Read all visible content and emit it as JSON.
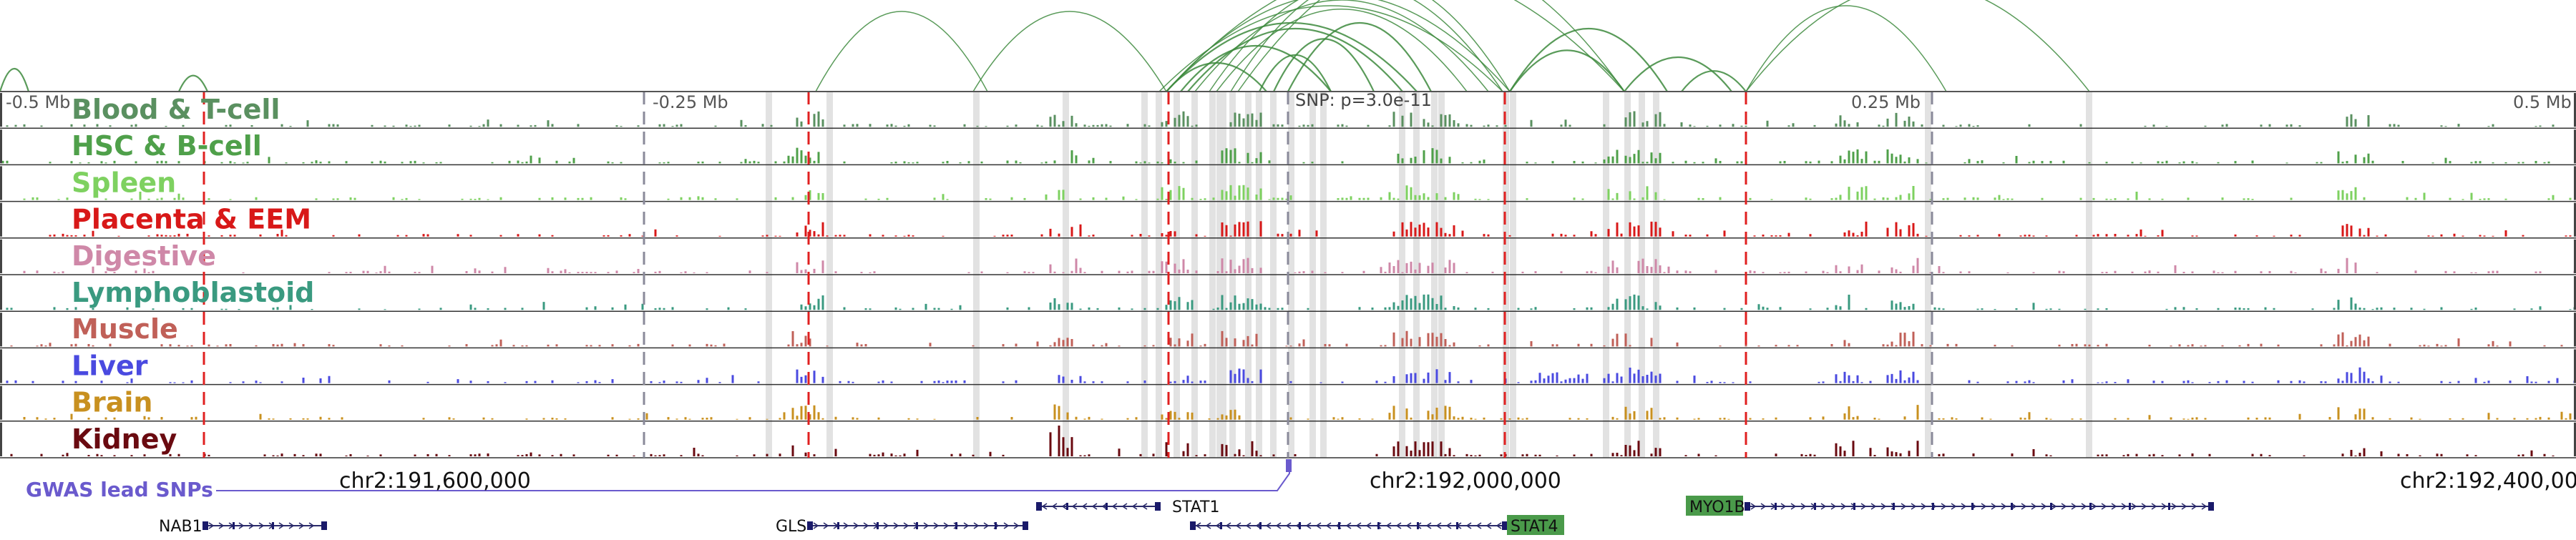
{
  "axis": {
    "ticks": [
      "-0.5 Mb",
      "-0.25 Mb",
      "0.25 Mb",
      "0.5 Mb"
    ],
    "snp_label": "SNP: p=3.0e-11"
  },
  "tracks": [
    {
      "label": "Blood & T-cell",
      "color": "#5a9060"
    },
    {
      "label": "HSC & B-cell",
      "color": "#4fa04a"
    },
    {
      "label": "Spleen",
      "color": "#7ed160"
    },
    {
      "label": "Placenta & EEM",
      "color": "#d81818"
    },
    {
      "label": "Digestive",
      "color": "#cf88a8"
    },
    {
      "label": "Lymphoblastoid",
      "color": "#3a9a80"
    },
    {
      "label": "Muscle",
      "color": "#c06058"
    },
    {
      "label": "Liver",
      "color": "#4a4ae0"
    },
    {
      "label": "Brain",
      "color": "#c8901f"
    },
    {
      "label": "Kidney",
      "color": "#6a0a10"
    }
  ],
  "gwas": {
    "label": "GWAS lead SNPs",
    "color": "#6a5acd"
  },
  "coordinates": [
    "chr2:191,600,000",
    "chr2:192,000,000",
    "chr2:192,400,000"
  ],
  "genes": [
    {
      "name": "NAB1",
      "strand": "+",
      "highlight": false
    },
    {
      "name": "GLS",
      "strand": "+",
      "highlight": false
    },
    {
      "name": "STAT1",
      "strand": "-",
      "highlight": false
    },
    {
      "name": "STAT4",
      "strand": "-",
      "highlight": true
    },
    {
      "name": "MYO1B",
      "strand": "+",
      "highlight": true
    }
  ],
  "colors": {
    "arc": "#3d8a3d",
    "red_dash": "#e02020",
    "highlight_gene": "#4a9a4a",
    "gray_band": "#e2e2e2"
  }
}
